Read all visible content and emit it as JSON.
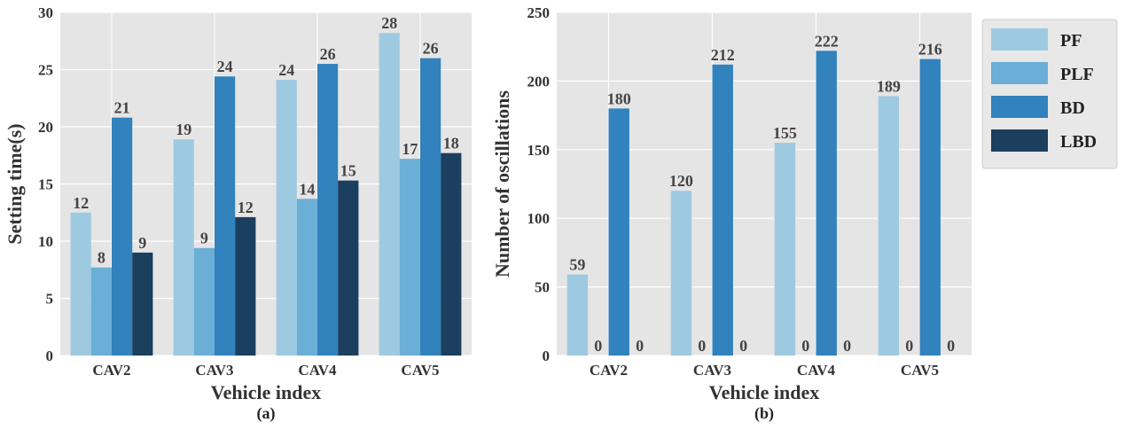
{
  "legend": {
    "items": [
      {
        "name": "PF",
        "color": "#9ecae1"
      },
      {
        "name": "PLF",
        "color": "#6baed6"
      },
      {
        "name": "BD",
        "color": "#3182bd"
      },
      {
        "name": "LBD",
        "color": "#1a3f5f"
      }
    ]
  },
  "chart_data": [
    {
      "type": "bar",
      "caption": "(a)",
      "title": "",
      "xlabel": "Vehicle index",
      "ylabel": "Setting time(s)",
      "ylim": [
        0,
        30
      ],
      "yticks": [
        0,
        5,
        10,
        15,
        20,
        25,
        30
      ],
      "grid": true,
      "categories": [
        "CAV2",
        "CAV3",
        "CAV4",
        "CAV5"
      ],
      "series": [
        {
          "name": "PF",
          "values": [
            12.5,
            18.9,
            24.1,
            28.2
          ],
          "labels": [
            "12",
            "19",
            "24",
            "28"
          ]
        },
        {
          "name": "PLF",
          "values": [
            7.7,
            9.4,
            13.7,
            17.2
          ],
          "labels": [
            "8",
            "9",
            "14",
            "17"
          ]
        },
        {
          "name": "BD",
          "values": [
            20.8,
            24.4,
            25.5,
            26.0
          ],
          "labels": [
            "21",
            "24",
            "26",
            "26"
          ]
        },
        {
          "name": "LBD",
          "values": [
            9.0,
            12.1,
            15.3,
            17.7
          ],
          "labels": [
            "9",
            "12",
            "15",
            "18"
          ]
        }
      ]
    },
    {
      "type": "bar",
      "caption": "(b)",
      "title": "",
      "xlabel": "Vehicle index",
      "ylabel": "Number of oscillations",
      "ylim": [
        0,
        250
      ],
      "yticks": [
        0,
        50,
        100,
        150,
        200,
        250
      ],
      "grid": true,
      "categories": [
        "CAV2",
        "CAV3",
        "CAV4",
        "CAV5"
      ],
      "series": [
        {
          "name": "PF",
          "values": [
            59,
            120,
            155,
            189
          ],
          "labels": [
            "59",
            "120",
            "155",
            "189"
          ]
        },
        {
          "name": "PLF",
          "values": [
            0,
            0,
            0,
            0
          ],
          "labels": [
            "0",
            "0",
            "0",
            "0"
          ]
        },
        {
          "name": "BD",
          "values": [
            180,
            212,
            222,
            216
          ],
          "labels": [
            "180",
            "212",
            "222",
            "216"
          ]
        },
        {
          "name": "LBD",
          "values": [
            0,
            0,
            0,
            0
          ],
          "labels": [
            "0",
            "0",
            "0",
            "0"
          ]
        }
      ],
      "legend_placement": "right"
    }
  ]
}
